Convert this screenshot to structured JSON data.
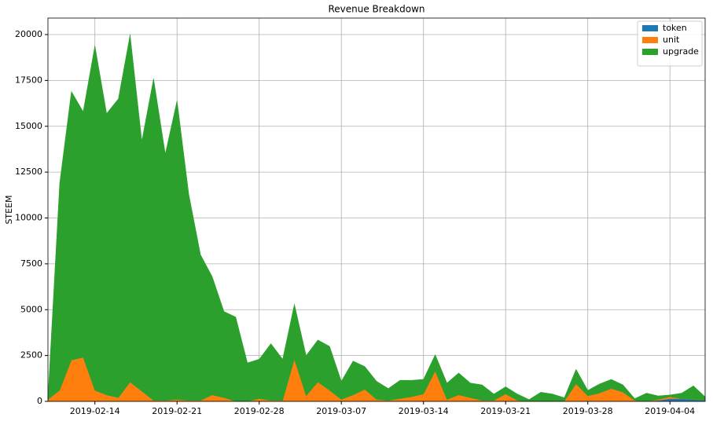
{
  "chart_data": {
    "type": "stacked_area",
    "title": "Revenue Breakdown",
    "y_label": "STEEM",
    "x": [
      "2019-02-10",
      "2019-02-11",
      "2019-02-12",
      "2019-02-13",
      "2019-02-14",
      "2019-02-15",
      "2019-02-16",
      "2019-02-17",
      "2019-02-18",
      "2019-02-19",
      "2019-02-20",
      "2019-02-21",
      "2019-02-22",
      "2019-02-23",
      "2019-02-24",
      "2019-02-25",
      "2019-02-26",
      "2019-02-27",
      "2019-02-28",
      "2019-03-01",
      "2019-03-02",
      "2019-03-03",
      "2019-03-04",
      "2019-03-05",
      "2019-03-06",
      "2019-03-07",
      "2019-03-08",
      "2019-03-09",
      "2019-03-10",
      "2019-03-11",
      "2019-03-12",
      "2019-03-13",
      "2019-03-14",
      "2019-03-15",
      "2019-03-16",
      "2019-03-17",
      "2019-03-18",
      "2019-03-19",
      "2019-03-20",
      "2019-03-21",
      "2019-03-22",
      "2019-03-23",
      "2019-03-24",
      "2019-03-25",
      "2019-03-26",
      "2019-03-27",
      "2019-03-28",
      "2019-03-29",
      "2019-03-30",
      "2019-03-31",
      "2019-04-01",
      "2019-04-02",
      "2019-04-03",
      "2019-04-04",
      "2019-04-05",
      "2019-04-06",
      "2019-04-07"
    ],
    "series": [
      {
        "name": "token",
        "color": "#1f77b4",
        "values": [
          0,
          0,
          0,
          0,
          0,
          0,
          0,
          0,
          0,
          0,
          0,
          0,
          0,
          0,
          0,
          0,
          0,
          0,
          0,
          0,
          0,
          0,
          0,
          0,
          0,
          0,
          0,
          0,
          0,
          0,
          0,
          0,
          0,
          0,
          0,
          0,
          0,
          0,
          0,
          0,
          0,
          0,
          0,
          0,
          0,
          0,
          0,
          0,
          0,
          0,
          0,
          0,
          50,
          150,
          150,
          100,
          50
        ]
      },
      {
        "name": "unit",
        "color": "#ff7f0e",
        "values": [
          100,
          600,
          2250,
          2400,
          600,
          350,
          200,
          1050,
          550,
          50,
          50,
          100,
          50,
          50,
          350,
          200,
          0,
          0,
          150,
          50,
          50,
          2300,
          300,
          1050,
          600,
          100,
          350,
          650,
          100,
          50,
          150,
          250,
          400,
          1650,
          100,
          350,
          200,
          50,
          50,
          400,
          50,
          0,
          0,
          0,
          0,
          950,
          300,
          450,
          700,
          500,
          50,
          0,
          50,
          100,
          0,
          0,
          0
        ]
      },
      {
        "name": "upgrade",
        "color": "#2ca02c",
        "values": [
          100,
          11300,
          14650,
          13400,
          18800,
          15350,
          16300,
          18950,
          13650,
          17550,
          13450,
          16300,
          11250,
          7950,
          6450,
          4700,
          4600,
          2100,
          2150,
          3100,
          2250,
          3000,
          2200,
          2300,
          2400,
          1000,
          1850,
          1250,
          1000,
          650,
          1000,
          900,
          800,
          900,
          900,
          1200,
          800,
          850,
          350,
          400,
          350,
          100,
          500,
          400,
          200,
          800,
          300,
          500,
          500,
          400,
          100,
          450,
          200,
          100,
          300,
          750,
          200
        ]
      }
    ],
    "xlim": [
      "2019-02-10",
      "2019-04-07"
    ],
    "xticks": [
      "2019-02-14",
      "2019-02-21",
      "2019-02-28",
      "2019-03-07",
      "2019-03-14",
      "2019-03-21",
      "2019-03-28",
      "2019-04-04"
    ],
    "ylim": [
      0,
      20900
    ],
    "yticks": [
      0,
      2500,
      5000,
      7500,
      10000,
      12500,
      15000,
      17500,
      20000
    ],
    "grid": true,
    "legend": "upper right"
  }
}
